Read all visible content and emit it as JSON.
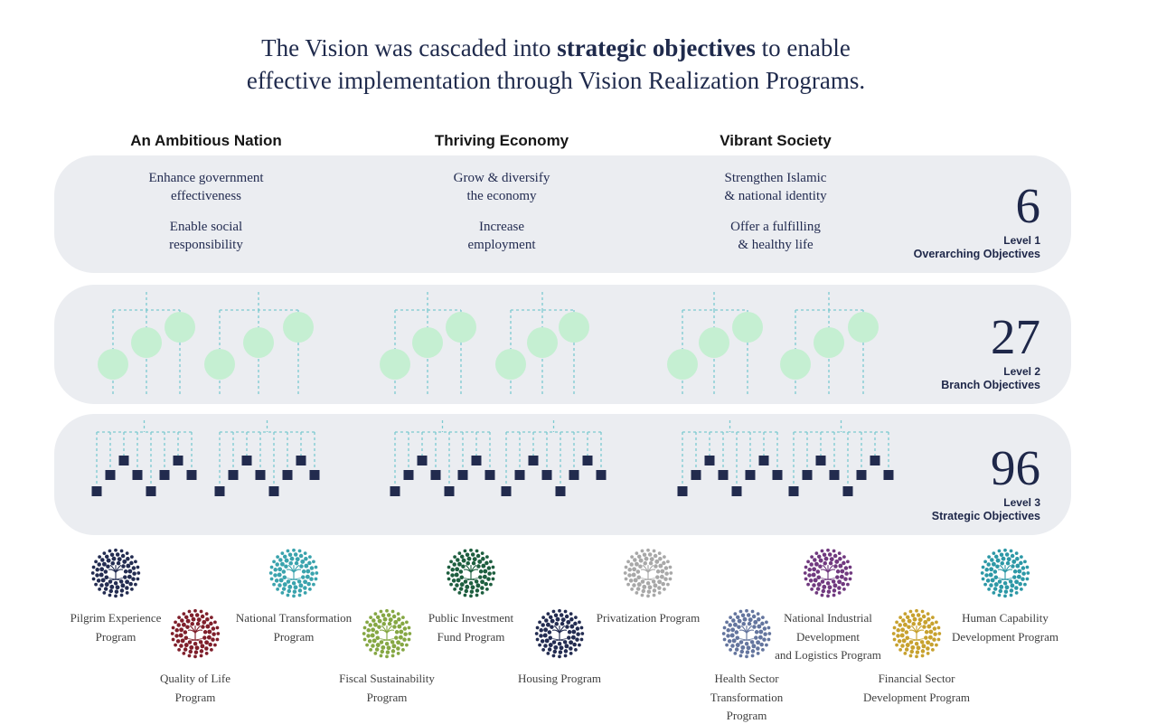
{
  "title": {
    "pre": "The Vision was cascaded into ",
    "bold": "strategic objectives",
    "post": " to enable",
    "line2": "effective implementation through Vision Realization Programs."
  },
  "pillars": [
    {
      "header": "An Ambitious Nation",
      "objectives": [
        "Enhance government\neffectiveness",
        "Enable social\nresponsibility"
      ]
    },
    {
      "header": "Thriving Economy",
      "objectives": [
        "Grow & diversify\nthe economy",
        "Increase\nemployment"
      ]
    },
    {
      "header": "Vibrant Society",
      "objectives": [
        "Strengthen Islamic\n& national identity",
        "Offer a fulfilling\n& healthy life"
      ]
    }
  ],
  "levels": [
    {
      "number": "6",
      "level": "Level 1",
      "name": "Overarching Objectives"
    },
    {
      "number": "27",
      "level": "Level 2",
      "name": "Branch Objectives"
    },
    {
      "number": "96",
      "level": "Level 3",
      "name": "Strategic Objectives"
    }
  ],
  "programs": [
    {
      "label": "Pilgrim Experience\nProgram",
      "color": "#232c51"
    },
    {
      "label": "Quality of Life\nProgram",
      "color": "#7f1f2b"
    },
    {
      "label": "National Transformation\nProgram",
      "color": "#3aa3ad"
    },
    {
      "label": "Fiscal Sustainability\nProgram",
      "color": "#85a743"
    },
    {
      "label": "Public Investment\nFund Program",
      "color": "#1d5e3f"
    },
    {
      "label": "Housing Program",
      "color": "#232c51"
    },
    {
      "label": "Privatization Program",
      "color": "#a8a8a8"
    },
    {
      "label": "Health Sector\nTransformation\nProgram",
      "color": "#64759e"
    },
    {
      "label": "National Industrial\nDevelopment\nand Logistics Program",
      "color": "#70397f"
    },
    {
      "label": "Financial Sector\nDevelopment Program",
      "color": "#c7a12e"
    },
    {
      "label": "Human Capability\nDevelopment Program",
      "color": "#2d98a6"
    }
  ],
  "colors": {
    "band_bg": "#ebedf1",
    "navy": "#1e2749",
    "dash_line": "#7ccad0",
    "branch_circle": "#c5efd2",
    "objective_square": "#222b4e"
  }
}
